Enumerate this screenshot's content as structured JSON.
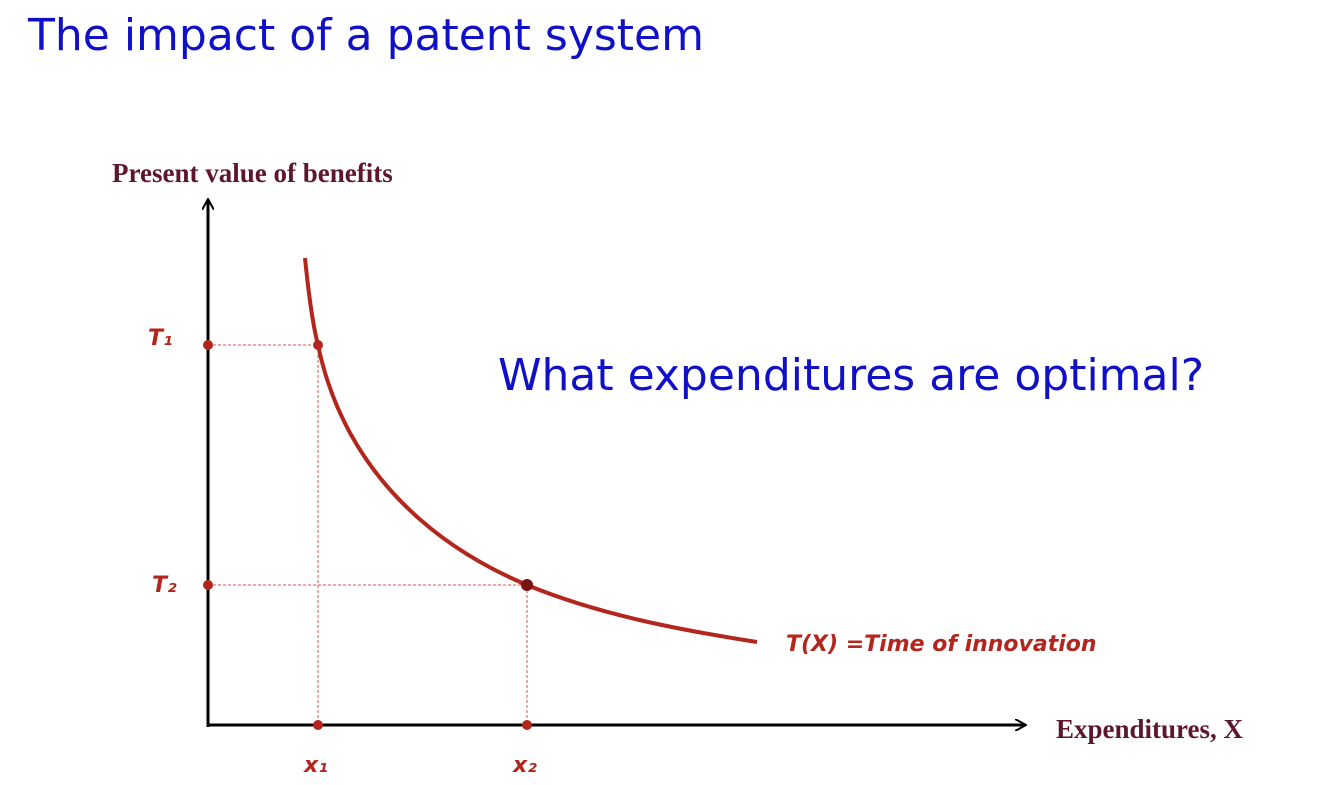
{
  "title": "The impact of a patent system",
  "question": "What expenditures are optimal?",
  "diagram": {
    "y_axis_label": "Present value of benefits",
    "x_axis_label": "Expenditures, X",
    "curve_label": "T(X) =Time of innovation",
    "y_points": [
      "T₁",
      "T₂"
    ],
    "x_points": [
      "x₁",
      "x₂"
    ]
  }
}
